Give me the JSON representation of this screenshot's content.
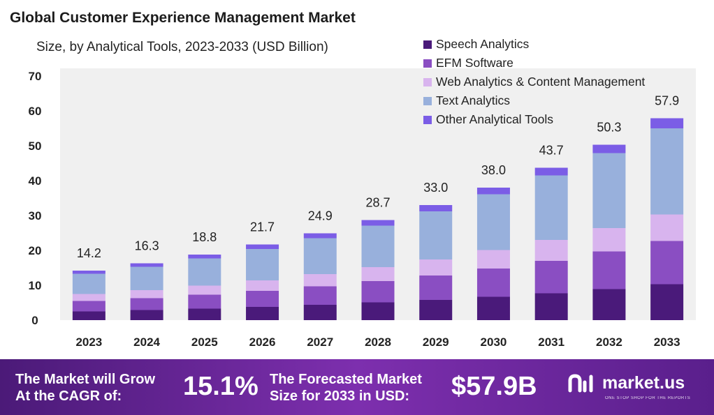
{
  "header": {
    "title": "Global Customer Experience Management Market",
    "subtitle": "Size, by Analytical Tools, 2023-2033 (USD Billion)"
  },
  "chart_data": {
    "type": "bar",
    "stacked": true,
    "title": "Global Customer Experience Management Market",
    "subtitle": "Size, by Analytical Tools, 2023-2033 (USD Billion)",
    "xlabel": "",
    "ylabel": "",
    "ylim": [
      0,
      70
    ],
    "yticks": [
      0,
      10,
      20,
      30,
      40,
      50,
      60,
      70
    ],
    "grid": false,
    "legend_position": "top-right",
    "categories": [
      "2023",
      "2024",
      "2025",
      "2026",
      "2027",
      "2028",
      "2029",
      "2030",
      "2031",
      "2032",
      "2033"
    ],
    "totals": [
      14.2,
      16.3,
      18.8,
      21.7,
      24.9,
      28.7,
      33.0,
      38.0,
      43.7,
      50.3,
      57.9
    ],
    "total_labels": [
      "14.2",
      "16.3",
      "18.8",
      "21.7",
      "24.9",
      "28.7",
      "33.0",
      "38.0",
      "43.7",
      "50.3",
      "57.9"
    ],
    "series": [
      {
        "name": "Speech Analytics",
        "color": "#4a1a7a",
        "values": [
          2.5,
          2.9,
          3.3,
          3.8,
          4.4,
          5.1,
          5.8,
          6.7,
          7.7,
          8.9,
          10.3
        ]
      },
      {
        "name": "EFM Software",
        "color": "#8a4ec2",
        "values": [
          3.0,
          3.4,
          4.0,
          4.6,
          5.3,
          6.1,
          7.0,
          8.1,
          9.3,
          10.8,
          12.4
        ]
      },
      {
        "name": "Web Analytics & Content Management",
        "color": "#d8b4ee",
        "values": [
          2.0,
          2.3,
          2.6,
          3.0,
          3.5,
          4.0,
          4.6,
          5.3,
          6.0,
          6.7,
          7.6
        ]
      },
      {
        "name": "Text Analytics",
        "color": "#98b0dc",
        "values": [
          5.8,
          6.7,
          7.8,
          9.0,
          10.3,
          11.9,
          13.8,
          16.0,
          18.5,
          21.5,
          24.7
        ]
      },
      {
        "name": "Other Analytical Tools",
        "color": "#7b5de6",
        "values": [
          0.9,
          1.0,
          1.1,
          1.3,
          1.4,
          1.6,
          1.8,
          1.9,
          2.2,
          2.4,
          2.9
        ]
      }
    ]
  },
  "footer": {
    "cagr_text_line1": "The Market will Grow",
    "cagr_text_line2": "At the CAGR of:",
    "cagr_value": "15.1%",
    "forecast_text_line1": "The Forecasted Market",
    "forecast_text_line2": "Size for 2033 in USD:",
    "forecast_value": "$57.9B",
    "brand_name": "market.us",
    "brand_tagline": "ONE STOP SHOP FOR THE REPORTS"
  }
}
